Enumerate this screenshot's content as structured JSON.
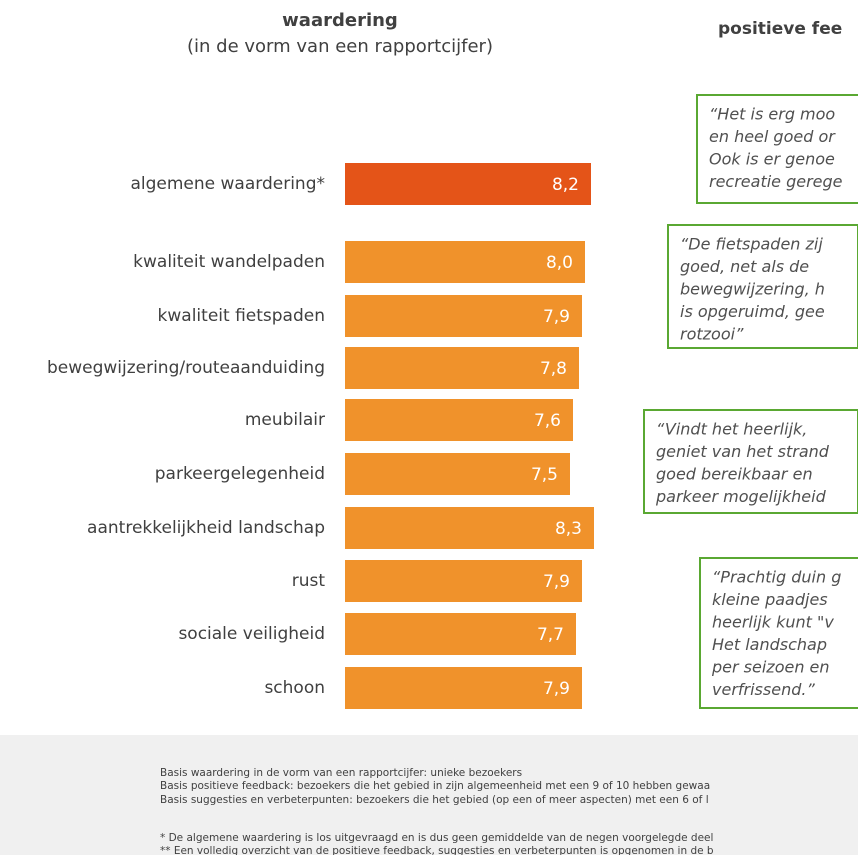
{
  "chart_data": {
    "type": "hbar",
    "title": "waardering",
    "subtitle": "(in de vorm van een rapportcijfer)",
    "categories": [
      "algemene waardering*",
      "kwaliteit wandelpaden",
      "kwaliteit fietspaden",
      "bewegwijzering/routeaanduiding",
      "meubilair",
      "parkeergelegenheid",
      "aantrekkelijkheid landschap",
      "rust",
      "sociale veiligheid",
      "schoon"
    ],
    "values": [
      8.2,
      8.0,
      7.9,
      7.8,
      7.6,
      7.5,
      8.3,
      7.9,
      7.7,
      7.9
    ],
    "value_labels": [
      "8,2",
      "8,0",
      "7,9",
      "7,8",
      "7,6",
      "7,5",
      "8,3",
      "7,9",
      "7,7",
      "7,9"
    ],
    "colors": [
      "#e45418",
      "#f0922b",
      "#f0922b",
      "#f0922b",
      "#f0922b",
      "#f0922b",
      "#f0922b",
      "#f0922b",
      "#f0922b",
      "#f0922b"
    ],
    "xlim": [
      0,
      10
    ]
  },
  "feedback": {
    "title": "positieve fee",
    "quotes": [
      [
        "“Het is erg moo",
        "en heel goed or",
        "Ook is er genoe",
        "recreatie gerege"
      ],
      [
        "“De fietspaden zij",
        "goed, net als de",
        "bewegwijzering, h",
        "is opgeruimd, gee",
        "rotzooi”"
      ],
      [
        "“Vindt het heerlijk,",
        "geniet van het strand",
        "goed bereikbaar en",
        "parkeer mogelijkheid"
      ],
      [
        "“Prachtig duin g",
        "kleine paadjes",
        "heerlijk kunt \"v",
        "Het landschap",
        "per seizoen en",
        "verfrissend.”"
      ]
    ]
  },
  "footer": {
    "notes": [
      "Basis waardering in de vorm van een rapportcijfer: unieke bezoekers",
      "Basis positieve feedback: bezoekers die het gebied in zijn algemeenheid met een 9 of 10 hebben gewaa",
      "Basis suggesties en verbeterpunten: bezoekers die het gebied (op een of meer aspecten) met een 6 of l",
      "* De algemene waardering is los uitgevraagd en is dus geen gemiddelde van de negen voorgelegde deel",
      "** Een volledig overzicht van de positieve feedback, suggesties en verbeterpunten is opgenomen in de b"
    ]
  }
}
